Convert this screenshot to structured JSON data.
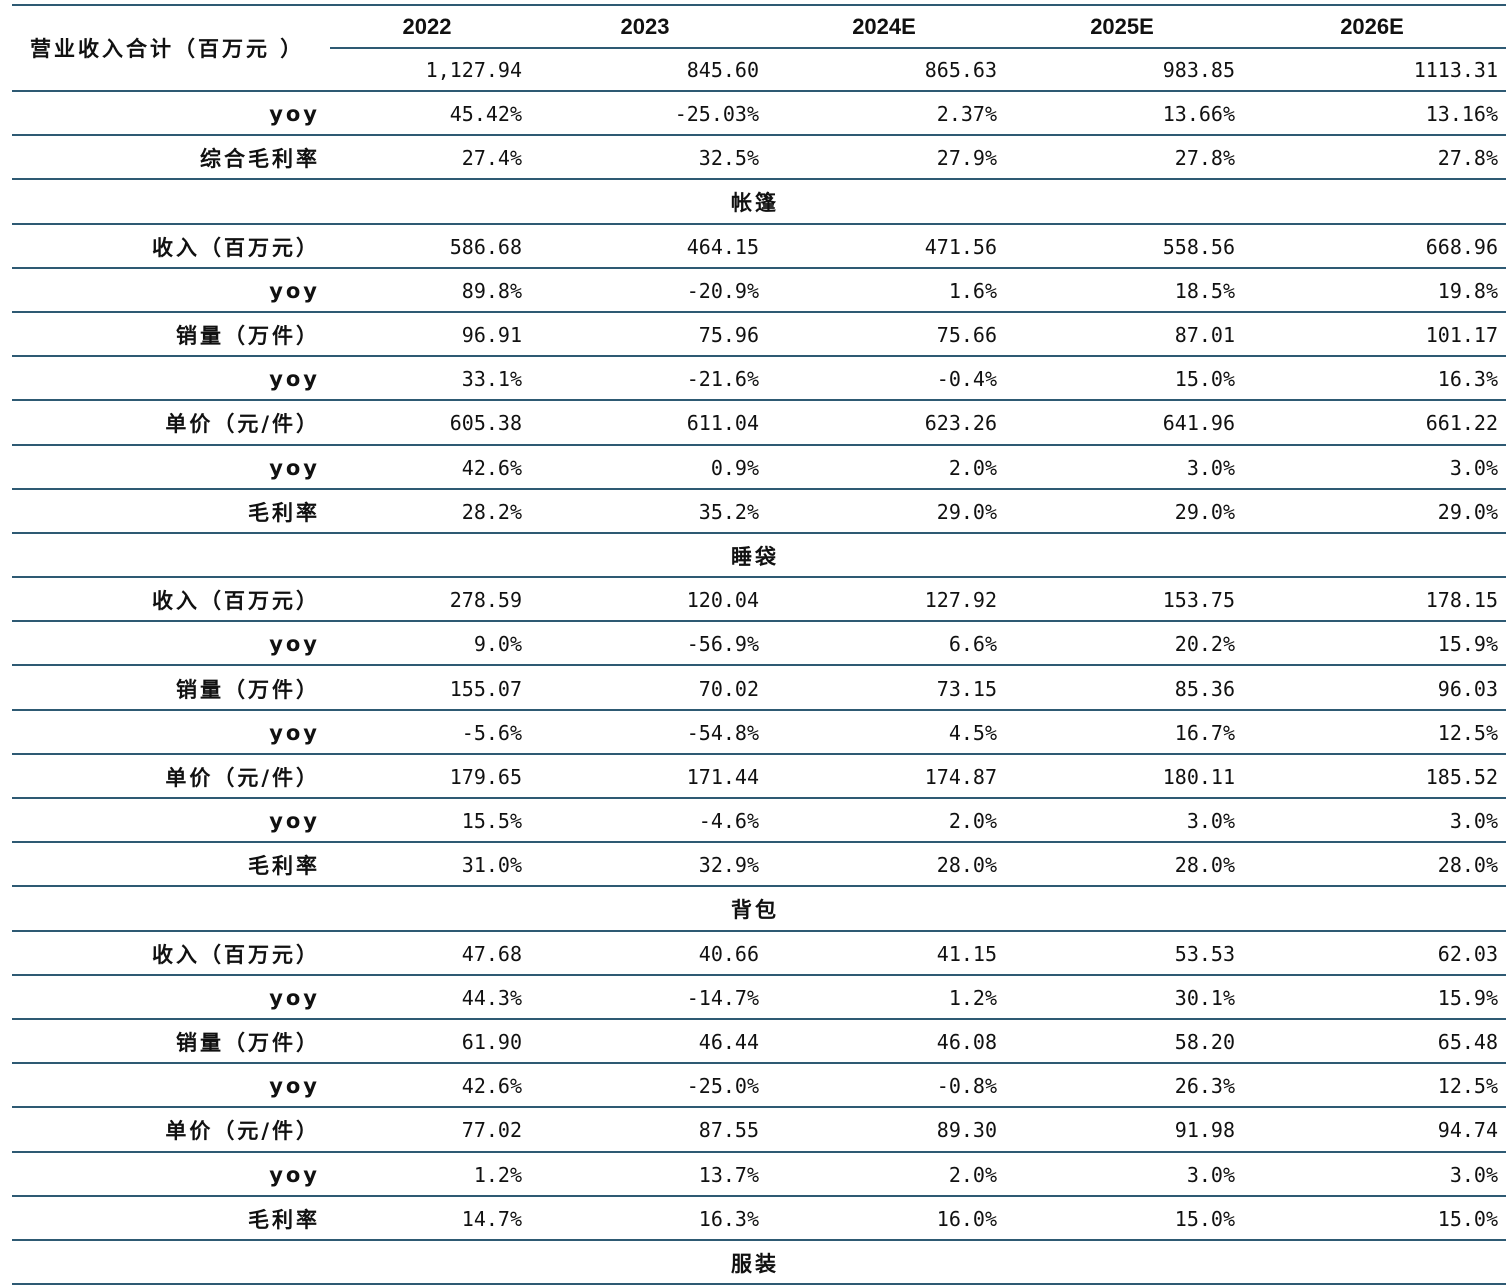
{
  "header": {
    "total_label": "营业收入合计（百万元 ）",
    "years": [
      "2022",
      "2023",
      "2024E",
      "2025E",
      "2026E"
    ],
    "total_values": [
      "1,127.94",
      "845.60",
      "865.63",
      "983.85",
      "1113.31"
    ]
  },
  "rows": [
    {
      "type": "data",
      "label": "yoy",
      "values": [
        "45.42%",
        "-25.03%",
        "2.37%",
        "13.66%",
        "13.16%"
      ]
    },
    {
      "type": "data",
      "label": "综合毛利率",
      "values": [
        "27.4%",
        "32.5%",
        "27.9%",
        "27.8%",
        "27.8%"
      ]
    },
    {
      "type": "section",
      "label": "帐篷"
    },
    {
      "type": "data",
      "label": "收入（百万元）",
      "values": [
        "586.68",
        "464.15",
        "471.56",
        "558.56",
        "668.96"
      ]
    },
    {
      "type": "data",
      "label": "yoy",
      "values": [
        "89.8%",
        "-20.9%",
        "1.6%",
        "18.5%",
        "19.8%"
      ]
    },
    {
      "type": "data",
      "label": "销量（万件）",
      "values": [
        "96.91",
        "75.96",
        "75.66",
        "87.01",
        "101.17"
      ]
    },
    {
      "type": "data",
      "label": "yoy",
      "values": [
        "33.1%",
        "-21.6%",
        "-0.4%",
        "15.0%",
        "16.3%"
      ]
    },
    {
      "type": "data",
      "label": "单价（元/件）",
      "values": [
        "605.38",
        "611.04",
        "623.26",
        "641.96",
        "661.22"
      ]
    },
    {
      "type": "data",
      "label": "yoy",
      "values": [
        "42.6%",
        "0.9%",
        "2.0%",
        "3.0%",
        "3.0%"
      ]
    },
    {
      "type": "data",
      "label": "毛利率",
      "values": [
        "28.2%",
        "35.2%",
        "29.0%",
        "29.0%",
        "29.0%"
      ]
    },
    {
      "type": "section",
      "label": "睡袋"
    },
    {
      "type": "data",
      "label": "收入（百万元）",
      "values": [
        "278.59",
        "120.04",
        "127.92",
        "153.75",
        "178.15"
      ]
    },
    {
      "type": "data",
      "label": "yoy",
      "values": [
        "9.0%",
        "-56.9%",
        "6.6%",
        "20.2%",
        "15.9%"
      ]
    },
    {
      "type": "data",
      "label": "销量（万件）",
      "values": [
        "155.07",
        "70.02",
        "73.15",
        "85.36",
        "96.03"
      ]
    },
    {
      "type": "data",
      "label": "yoy",
      "values": [
        "-5.6%",
        "-54.8%",
        "4.5%",
        "16.7%",
        "12.5%"
      ]
    },
    {
      "type": "data",
      "label": "单价（元/件）",
      "values": [
        "179.65",
        "171.44",
        "174.87",
        "180.11",
        "185.52"
      ]
    },
    {
      "type": "data",
      "label": "yoy",
      "values": [
        "15.5%",
        "-4.6%",
        "2.0%",
        "3.0%",
        "3.0%"
      ]
    },
    {
      "type": "data",
      "label": "毛利率",
      "values": [
        "31.0%",
        "32.9%",
        "28.0%",
        "28.0%",
        "28.0%"
      ]
    },
    {
      "type": "section",
      "label": "背包"
    },
    {
      "type": "data",
      "label": "收入（百万元）",
      "values": [
        "47.68",
        "40.66",
        "41.15",
        "53.53",
        "62.03"
      ]
    },
    {
      "type": "data",
      "label": "yoy",
      "values": [
        "44.3%",
        "-14.7%",
        "1.2%",
        "30.1%",
        "15.9%"
      ]
    },
    {
      "type": "data",
      "label": "销量（万件）",
      "values": [
        "61.90",
        "46.44",
        "46.08",
        "58.20",
        "65.48"
      ]
    },
    {
      "type": "data",
      "label": "yoy",
      "values": [
        "42.6%",
        "-25.0%",
        "-0.8%",
        "26.3%",
        "12.5%"
      ]
    },
    {
      "type": "data",
      "label": "单价（元/件）",
      "values": [
        "77.02",
        "87.55",
        "89.30",
        "91.98",
        "94.74"
      ]
    },
    {
      "type": "data",
      "label": "yoy",
      "values": [
        "1.2%",
        "13.7%",
        "2.0%",
        "3.0%",
        "3.0%"
      ]
    },
    {
      "type": "data",
      "label": "毛利率",
      "values": [
        "14.7%",
        "16.3%",
        "16.0%",
        "15.0%",
        "15.0%"
      ]
    },
    {
      "type": "section",
      "label": "服装"
    }
  ]
}
